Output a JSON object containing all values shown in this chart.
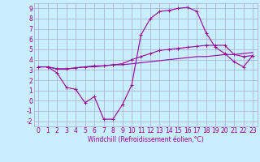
{
  "x": [
    0,
    1,
    2,
    3,
    4,
    5,
    6,
    7,
    8,
    9,
    10,
    11,
    12,
    13,
    14,
    15,
    16,
    17,
    18,
    19,
    20,
    21,
    22,
    23
  ],
  "line1": [
    3.3,
    3.3,
    2.7,
    1.3,
    1.1,
    -0.2,
    0.4,
    -1.8,
    -1.8,
    -0.4,
    1.5,
    6.4,
    8.0,
    8.7,
    8.8,
    9.0,
    9.1,
    8.7,
    6.6,
    5.2,
    4.6,
    3.8,
    3.3,
    4.4
  ],
  "line2": [
    3.3,
    3.3,
    3.1,
    3.1,
    3.2,
    3.3,
    3.3,
    3.4,
    3.5,
    3.5,
    3.6,
    3.7,
    3.8,
    3.9,
    4.0,
    4.1,
    4.2,
    4.3,
    4.3,
    4.4,
    4.5,
    4.5,
    4.6,
    4.7
  ],
  "line3": [
    3.3,
    3.3,
    3.1,
    3.1,
    3.2,
    3.3,
    3.4,
    3.4,
    3.5,
    3.6,
    4.0,
    4.3,
    4.6,
    4.9,
    5.0,
    5.1,
    5.2,
    5.3,
    5.4,
    5.4,
    5.4,
    4.5,
    4.3,
    4.4
  ],
  "color": "#990099",
  "bg_color": "#c8eeff",
  "grid_color": "#aaaacc",
  "ylim": [
    -2.5,
    9.5
  ],
  "xlim": [
    -0.5,
    23.5
  ],
  "xlabel": "Windchill (Refroidissement éolien,°C)",
  "yticks": [
    -2,
    -1,
    0,
    1,
    2,
    3,
    4,
    5,
    6,
    7,
    8,
    9
  ],
  "xticks": [
    0,
    1,
    2,
    3,
    4,
    5,
    6,
    7,
    8,
    9,
    10,
    11,
    12,
    13,
    14,
    15,
    16,
    17,
    18,
    19,
    20,
    21,
    22,
    23
  ],
  "tick_fontsize": 5.5,
  "xlabel_fontsize": 5.5,
  "linewidth": 0.8,
  "marker_size": 3,
  "marker_ew": 0.7
}
